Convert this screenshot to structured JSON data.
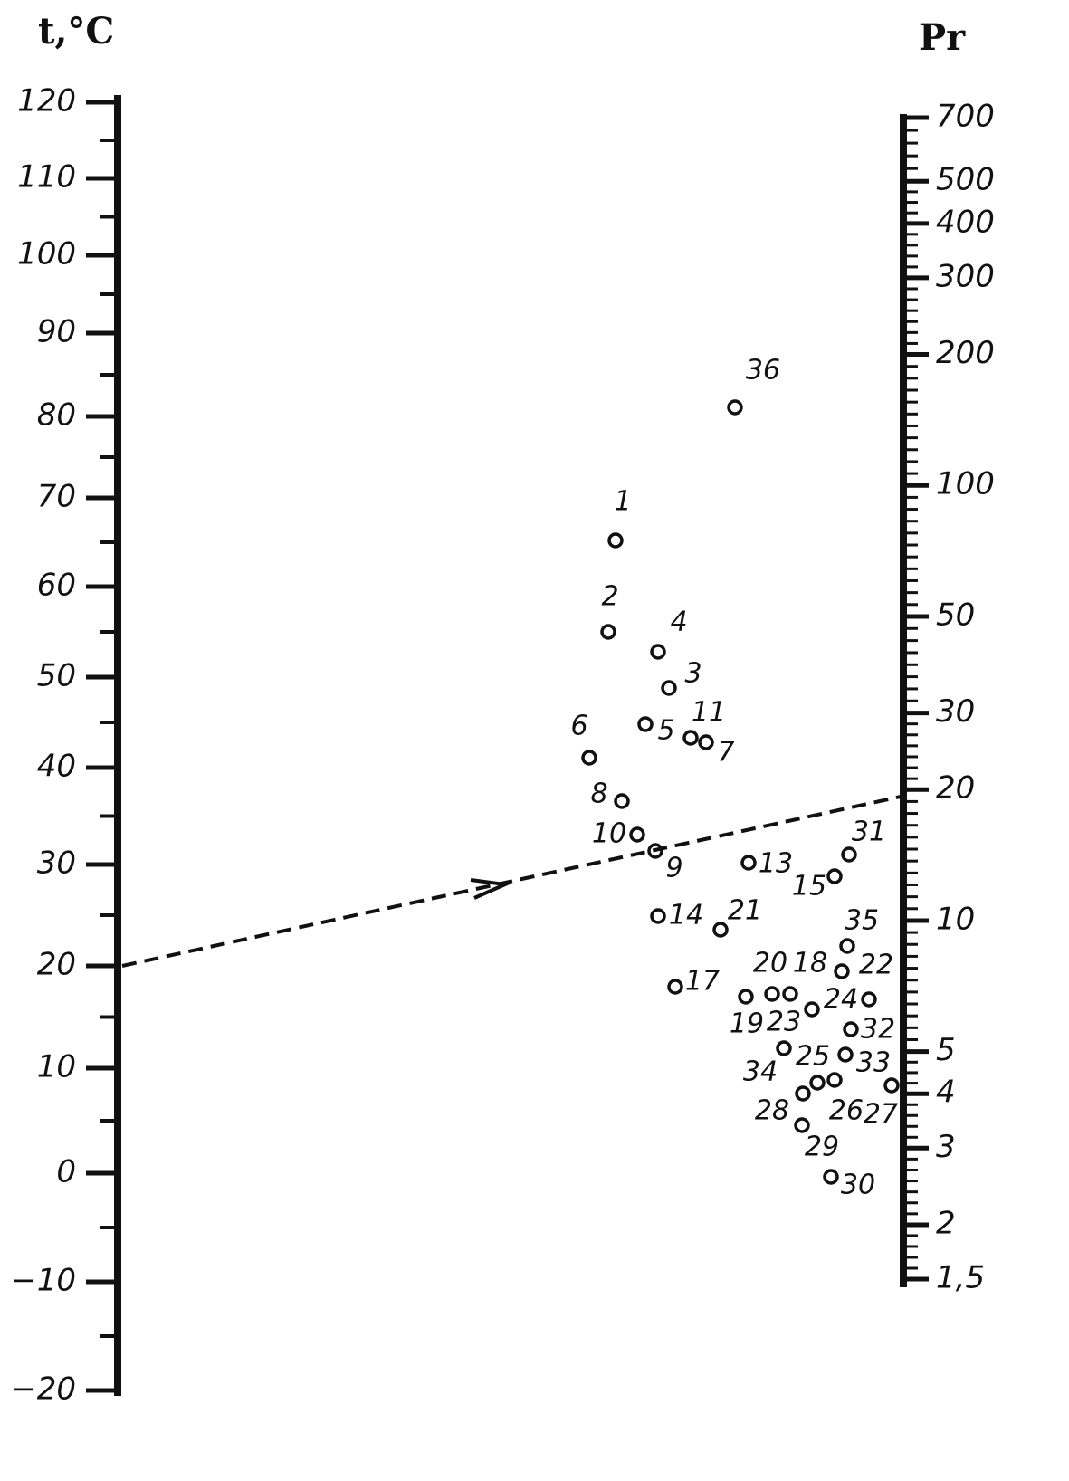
{
  "left_axis": {
    "title": "t,°C",
    "ticks": [
      120,
      110,
      100,
      90,
      80,
      70,
      60,
      50,
      40,
      30,
      20,
      10,
      0,
      {
        "value": -10,
        "label": "−10"
      },
      {
        "value": -20,
        "label": "−20"
      }
    ]
  },
  "right_axis": {
    "title": "Pr",
    "scale": "log",
    "ticks": [
      700,
      500,
      400,
      300,
      200,
      100,
      50,
      30,
      20,
      10,
      5,
      4,
      3,
      2,
      {
        "value": 1.5,
        "label": "1,5"
      }
    ]
  },
  "points": [
    {
      "label": "36"
    },
    {
      "label": "1"
    },
    {
      "label": "2"
    },
    {
      "label": "4"
    },
    {
      "label": "3"
    },
    {
      "label": "5"
    },
    {
      "label": "11"
    },
    {
      "label": "7"
    },
    {
      "label": "6"
    },
    {
      "label": "8"
    },
    {
      "label": "10"
    },
    {
      "label": "9"
    },
    {
      "label": "13"
    },
    {
      "label": "31"
    },
    {
      "label": "15"
    },
    {
      "label": "14"
    },
    {
      "label": "21"
    },
    {
      "label": "35"
    },
    {
      "label": "20"
    },
    {
      "label": "18"
    },
    {
      "label": "22"
    },
    {
      "label": "17"
    },
    {
      "label": "19"
    },
    {
      "label": "24"
    },
    {
      "label": "32"
    },
    {
      "label": "23"
    },
    {
      "label": "25"
    },
    {
      "label": "33"
    },
    {
      "label": "34"
    },
    {
      "label": "26"
    },
    {
      "label": "27"
    },
    {
      "label": "28"
    },
    {
      "label": "29"
    },
    {
      "label": "30"
    }
  ]
}
